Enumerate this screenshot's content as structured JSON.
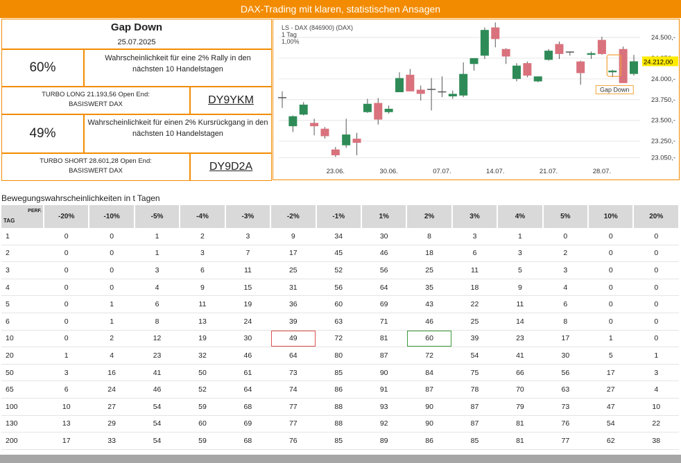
{
  "banner": {
    "title": "DAX-Trading mit klaren, statistischen Ansagen"
  },
  "info": {
    "signal_title": "Gap Down",
    "signal_date": "25.07.2025",
    "rally": {
      "pct": "60%",
      "desc": "Wahrscheinlichkeit für eine 2% Rally in den nächsten 10 Handelstagen"
    },
    "long": {
      "label": "TURBO LONG 21.193,56 Open End: BASISWERT DAX",
      "wkn": "DY9YKM"
    },
    "drop": {
      "pct": "49%",
      "desc": "Wahrscheinlichkeit für einen 2% Kursrückgang in den nächsten 10 Handelstagen"
    },
    "short": {
      "label": "TURBO SHORT 28.601,28 Open End: BASISWERT DAX",
      "wkn": "DY9D2A"
    }
  },
  "chart_data": {
    "type": "candlestick",
    "title": "LS - DAX (846900) (DAX)",
    "subtitle_1": "1 Tag",
    "subtitle_2": "1,00%",
    "y_ticks": [
      "24.500,-",
      "24.250,-",
      "24.000,-",
      "23.750,-",
      "23.500,-",
      "23.250,-",
      "23.050,-"
    ],
    "y_tick_values": [
      24500,
      24250,
      24000,
      23750,
      23500,
      23250,
      23050
    ],
    "ylim": [
      22980,
      24650
    ],
    "x_ticks": [
      "23.06.",
      "30.06.",
      "07.07.",
      "14.07.",
      "21.07.",
      "28.07."
    ],
    "last_price": "24.212,00",
    "last_price_value": 24212,
    "annotation": "Gap Down",
    "colors": {
      "up": "#2e8b57",
      "down": "#d9727d",
      "last_price_bg": "#ffeb00"
    },
    "candles": [
      {
        "o": 23780,
        "h": 23850,
        "l": 23650,
        "c": 23780
      },
      {
        "o": 23430,
        "h": 23560,
        "l": 23360,
        "c": 23550
      },
      {
        "o": 23570,
        "h": 23720,
        "l": 23560,
        "c": 23690
      },
      {
        "o": 23470,
        "h": 23520,
        "l": 23320,
        "c": 23430
      },
      {
        "o": 23400,
        "h": 23420,
        "l": 23280,
        "c": 23310
      },
      {
        "o": 23150,
        "h": 23180,
        "l": 23060,
        "c": 23080
      },
      {
        "o": 23200,
        "h": 23520,
        "l": 23170,
        "c": 23330
      },
      {
        "o": 23280,
        "h": 23350,
        "l": 23080,
        "c": 23230
      },
      {
        "o": 23600,
        "h": 23760,
        "l": 23590,
        "c": 23700
      },
      {
        "o": 23710,
        "h": 23770,
        "l": 23450,
        "c": 23510
      },
      {
        "o": 23600,
        "h": 23680,
        "l": 23580,
        "c": 23640
      },
      {
        "o": 23840,
        "h": 24080,
        "l": 23840,
        "c": 24010
      },
      {
        "o": 24050,
        "h": 24120,
        "l": 23860,
        "c": 23850
      },
      {
        "o": 23870,
        "h": 23920,
        "l": 23740,
        "c": 23820
      },
      {
        "o": 23880,
        "h": 24010,
        "l": 23620,
        "c": 23880
      },
      {
        "o": 23850,
        "h": 24030,
        "l": 23780,
        "c": 23850
      },
      {
        "o": 23790,
        "h": 23860,
        "l": 23760,
        "c": 23820
      },
      {
        "o": 23800,
        "h": 24200,
        "l": 23780,
        "c": 24060
      },
      {
        "o": 24180,
        "h": 24250,
        "l": 24100,
        "c": 24250
      },
      {
        "o": 24280,
        "h": 24620,
        "l": 24240,
        "c": 24590
      },
      {
        "o": 24620,
        "h": 24680,
        "l": 24380,
        "c": 24480
      },
      {
        "o": 24360,
        "h": 24370,
        "l": 24180,
        "c": 24270
      },
      {
        "o": 24000,
        "h": 24190,
        "l": 23970,
        "c": 24160
      },
      {
        "o": 24190,
        "h": 24210,
        "l": 24020,
        "c": 24040
      },
      {
        "o": 23970,
        "h": 24030,
        "l": 23960,
        "c": 24030
      },
      {
        "o": 24230,
        "h": 24360,
        "l": 24220,
        "c": 24340
      },
      {
        "o": 24420,
        "h": 24450,
        "l": 24240,
        "c": 24300
      },
      {
        "o": 24330,
        "h": 24330,
        "l": 24280,
        "c": 24330
      },
      {
        "o": 24210,
        "h": 24220,
        "l": 23930,
        "c": 24070
      },
      {
        "o": 24290,
        "h": 24330,
        "l": 24240,
        "c": 24310
      },
      {
        "o": 24470,
        "h": 24510,
        "l": 24290,
        "c": 24300
      },
      {
        "o": 24080,
        "h": 24110,
        "l": 24020,
        "c": 24100
      },
      {
        "o": 24360,
        "h": 24390,
        "l": 23960,
        "c": 23950
      },
      {
        "o": 24060,
        "h": 24290,
        "l": 24040,
        "c": 24212
      }
    ]
  },
  "table": {
    "caption": "Bewegungswahrscheinlichkeiten in t Tagen",
    "header_tag": "TAG",
    "header_perf": "PERF.",
    "columns": [
      "-20%",
      "-10%",
      "-5%",
      "-4%",
      "-3%",
      "-2%",
      "-1%",
      "1%",
      "2%",
      "3%",
      "4%",
      "5%",
      "10%",
      "20%"
    ],
    "rows": [
      {
        "tag": "1",
        "values": [
          "0",
          "0",
          "1",
          "2",
          "3",
          "9",
          "34",
          "30",
          "8",
          "3",
          "1",
          "0",
          "0",
          "0"
        ]
      },
      {
        "tag": "2",
        "values": [
          "0",
          "0",
          "1",
          "3",
          "7",
          "17",
          "45",
          "46",
          "18",
          "6",
          "3",
          "2",
          "0",
          "0"
        ]
      },
      {
        "tag": "3",
        "values": [
          "0",
          "0",
          "3",
          "6",
          "11",
          "25",
          "52",
          "56",
          "25",
          "11",
          "5",
          "3",
          "0",
          "0"
        ]
      },
      {
        "tag": "4",
        "values": [
          "0",
          "0",
          "4",
          "9",
          "15",
          "31",
          "56",
          "64",
          "35",
          "18",
          "9",
          "4",
          "0",
          "0"
        ]
      },
      {
        "tag": "5",
        "values": [
          "0",
          "1",
          "6",
          "11",
          "19",
          "36",
          "60",
          "69",
          "43",
          "22",
          "11",
          "6",
          "0",
          "0"
        ]
      },
      {
        "tag": "6",
        "values": [
          "0",
          "1",
          "8",
          "13",
          "24",
          "39",
          "63",
          "71",
          "46",
          "25",
          "14",
          "8",
          "0",
          "0"
        ]
      },
      {
        "tag": "10",
        "values": [
          "0",
          "2",
          "12",
          "19",
          "30",
          "49",
          "72",
          "81",
          "60",
          "39",
          "23",
          "17",
          "1",
          "0"
        ]
      },
      {
        "tag": "20",
        "values": [
          "1",
          "4",
          "23",
          "32",
          "46",
          "64",
          "80",
          "87",
          "72",
          "54",
          "41",
          "30",
          "5",
          "1"
        ]
      },
      {
        "tag": "50",
        "values": [
          "3",
          "16",
          "41",
          "50",
          "61",
          "73",
          "85",
          "90",
          "84",
          "75",
          "66",
          "56",
          "17",
          "3"
        ]
      },
      {
        "tag": "65",
        "values": [
          "6",
          "24",
          "46",
          "52",
          "64",
          "74",
          "86",
          "91",
          "87",
          "78",
          "70",
          "63",
          "27",
          "4"
        ]
      },
      {
        "tag": "100",
        "values": [
          "10",
          "27",
          "54",
          "59",
          "68",
          "77",
          "88",
          "93",
          "90",
          "87",
          "79",
          "73",
          "47",
          "10"
        ]
      },
      {
        "tag": "130",
        "values": [
          "13",
          "29",
          "54",
          "60",
          "69",
          "77",
          "88",
          "92",
          "90",
          "87",
          "81",
          "76",
          "54",
          "22"
        ]
      },
      {
        "tag": "200",
        "values": [
          "17",
          "33",
          "54",
          "59",
          "68",
          "76",
          "85",
          "89",
          "86",
          "85",
          "81",
          "77",
          "62",
          "38"
        ]
      }
    ]
  }
}
